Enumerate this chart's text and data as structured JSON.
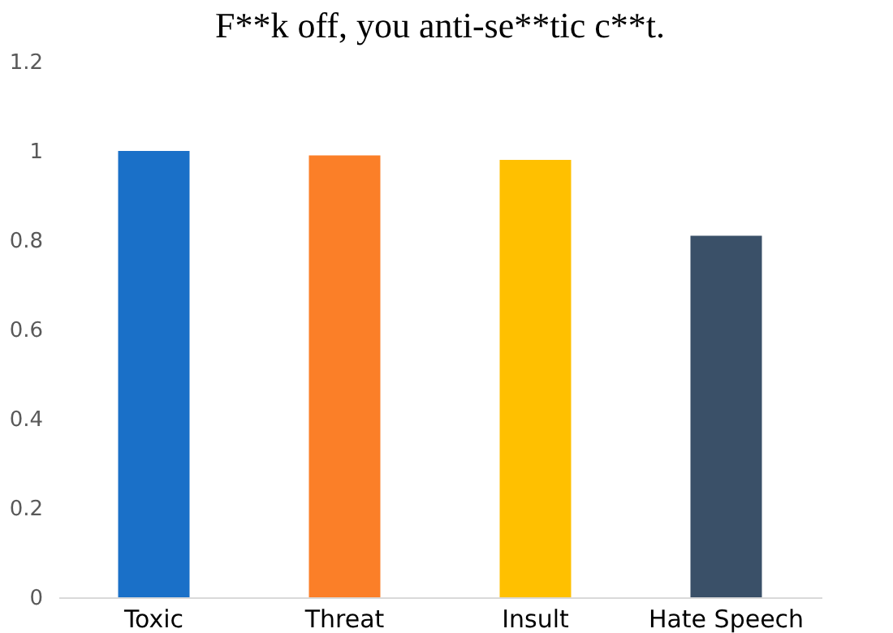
{
  "chart_data": {
    "type": "bar",
    "title": "F**k off, you anti-se**tic c**t.",
    "categories": [
      "Toxic",
      "Threat",
      "Insult",
      "Hate Speech"
    ],
    "values": [
      1.0,
      0.99,
      0.98,
      0.81
    ],
    "colors": [
      "#1a70c8",
      "#fb7f28",
      "#ffc000",
      "#3a5068"
    ],
    "ylim": [
      0,
      1.2
    ],
    "yticks": [
      0,
      0.2,
      0.4,
      0.6,
      0.8,
      1,
      1.2
    ],
    "grid": false
  }
}
